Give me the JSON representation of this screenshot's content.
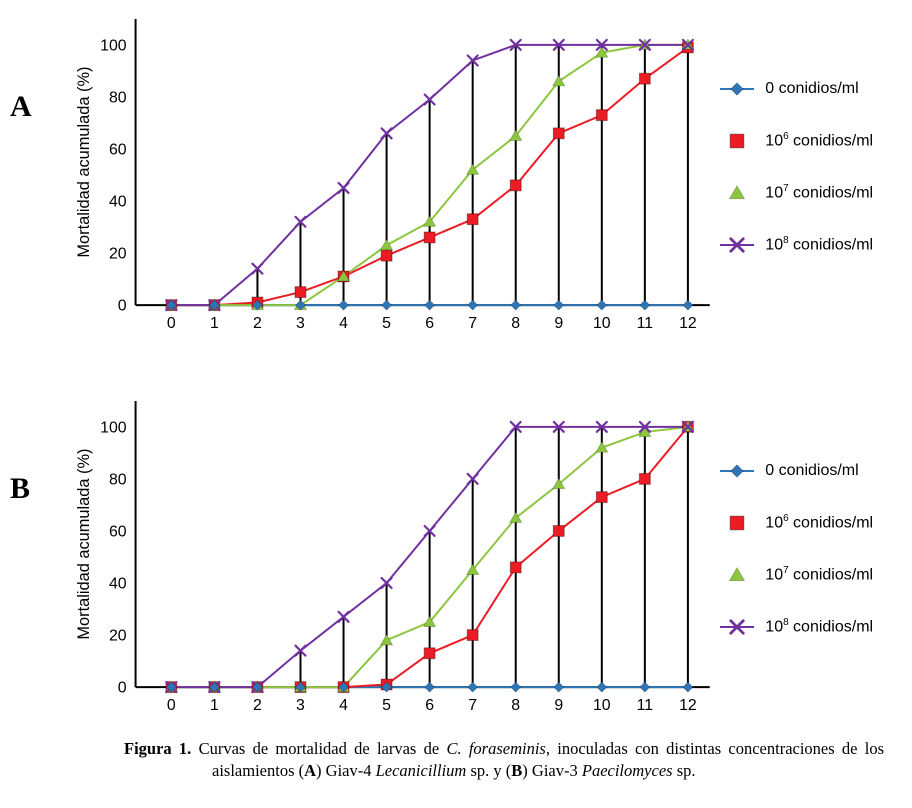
{
  "chart_data": [
    {
      "type": "line",
      "panel_label": "A",
      "ylabel": "Mortalidad acumulada (%)",
      "x": [
        0,
        1,
        2,
        3,
        4,
        5,
        6,
        7,
        8,
        9,
        10,
        11,
        12
      ],
      "ylim": [
        0,
        100
      ],
      "yticks": [
        0,
        20,
        40,
        60,
        80,
        100
      ],
      "grid": false,
      "legend_position": "right",
      "droplines": true,
      "series": [
        {
          "name": "0 conidios/ml",
          "legend": {
            "text": "0 conidios/ml"
          },
          "color": "#2E75B6",
          "marker": "diamond",
          "legend_line": true,
          "values": [
            0,
            0,
            0,
            0,
            0,
            0,
            0,
            0,
            0,
            0,
            0,
            0,
            0
          ]
        },
        {
          "name": "10^6 conidios/ml",
          "legend": {
            "base": "10",
            "sup": "6",
            "suffix": " conidios/ml"
          },
          "color": "#ED1C24",
          "marker": "square",
          "legend_line": false,
          "values": [
            0,
            0,
            1,
            5,
            11,
            19,
            26,
            33,
            46,
            66,
            73,
            87,
            99
          ]
        },
        {
          "name": "10^7 conidios/ml",
          "legend": {
            "base": "10",
            "sup": "7",
            "suffix": " conidios/ml"
          },
          "color": "#8CC63E",
          "marker": "triangle",
          "legend_line": false,
          "values": [
            0,
            0,
            0,
            0,
            11,
            23,
            32,
            52,
            65,
            86,
            97,
            100,
            100
          ]
        },
        {
          "name": "10^8 conidios/ml",
          "legend": {
            "base": "10",
            "sup": "8",
            "suffix": " conidios/ml"
          },
          "color": "#7030A0",
          "marker": "x",
          "legend_line": true,
          "values": [
            0,
            0,
            14,
            32,
            45,
            66,
            79,
            94,
            100,
            100,
            100,
            100,
            100
          ]
        }
      ]
    },
    {
      "type": "line",
      "panel_label": "B",
      "ylabel": "Mortalidad acumulada (%)",
      "x": [
        0,
        1,
        2,
        3,
        4,
        5,
        6,
        7,
        8,
        9,
        10,
        11,
        12
      ],
      "ylim": [
        0,
        100
      ],
      "yticks": [
        0,
        20,
        40,
        60,
        80,
        100
      ],
      "grid": false,
      "legend_position": "right",
      "droplines": true,
      "series": [
        {
          "name": "0 conidios/ml",
          "legend": {
            "text": "0 conidios/ml"
          },
          "color": "#2E75B6",
          "marker": "diamond",
          "legend_line": true,
          "values": [
            0,
            0,
            0,
            0,
            0,
            0,
            0,
            0,
            0,
            0,
            0,
            0,
            0
          ]
        },
        {
          "name": "10^6 conidios/ml",
          "legend": {
            "base": "10",
            "sup": "6",
            "suffix": " conidios/ml"
          },
          "color": "#ED1C24",
          "marker": "square",
          "legend_line": false,
          "values": [
            0,
            0,
            0,
            0,
            0,
            1,
            13,
            20,
            46,
            60,
            73,
            80,
            100
          ]
        },
        {
          "name": "10^7 conidios/ml",
          "legend": {
            "base": "10",
            "sup": "7",
            "suffix": " conidios/ml"
          },
          "color": "#8CC63E",
          "marker": "triangle",
          "legend_line": false,
          "values": [
            0,
            0,
            0,
            0,
            0,
            18,
            25,
            45,
            65,
            78,
            92,
            98,
            100
          ]
        },
        {
          "name": "10^8 conidios/ml",
          "legend": {
            "base": "10",
            "sup": "8",
            "suffix": " conidios/ml"
          },
          "color": "#7030A0",
          "marker": "x",
          "legend_line": true,
          "values": [
            0,
            0,
            0,
            14,
            27,
            40,
            60,
            80,
            100,
            100,
            100,
            100,
            100
          ]
        }
      ]
    }
  ],
  "caption": {
    "segments": [
      {
        "t": "Figura 1. ",
        "b": true
      },
      {
        "t": "Curvas de mortalidad de larvas de "
      },
      {
        "t": "C. foraseminis",
        "i": true
      },
      {
        "t": ", inoculadas con distintas concentraciones de los aislamientos ("
      },
      {
        "t": "A",
        "b": true
      },
      {
        "t": ") Giav-4 "
      },
      {
        "t": "Lecanicillium",
        "i": true
      },
      {
        "t": " sp. y ("
      },
      {
        "t": "B",
        "b": true
      },
      {
        "t": ") Giav-3 "
      },
      {
        "t": "Paecilomyces",
        "i": true
      },
      {
        "t": " sp."
      }
    ]
  }
}
